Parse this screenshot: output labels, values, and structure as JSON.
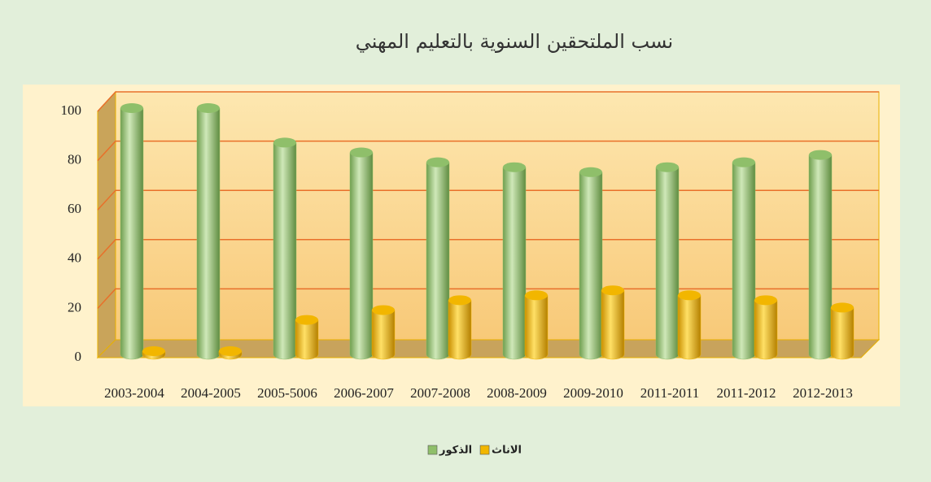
{
  "chart_data": {
    "type": "bar3d",
    "title": "نسب الملتحقين السنوية بالتعليم المهني",
    "categories": [
      "2003-2004",
      "2004-2005",
      "2005-5006",
      "2006-2007",
      "2007-2008",
      "2008-2009",
      "2009-2010",
      "2011-2011",
      "2011-2012",
      "2012-2013"
    ],
    "series": [
      {
        "name": "الذكور",
        "color": "#8fbf6a",
        "values": [
          100,
          100,
          86,
          82,
          78,
          76,
          74,
          76,
          78,
          81
        ]
      },
      {
        "name": "الاناث",
        "color": "#f2b600",
        "values": [
          0,
          0,
          14,
          18,
          22,
          24,
          26,
          24,
          22,
          19
        ]
      }
    ],
    "ylim": [
      0,
      100
    ],
    "yticks": [
      0,
      20,
      40,
      60,
      80,
      100
    ],
    "grid": true
  }
}
